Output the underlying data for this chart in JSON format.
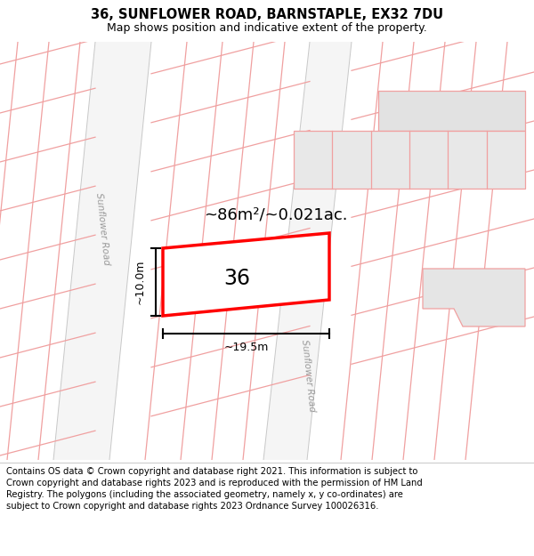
{
  "title": "36, SUNFLOWER ROAD, BARNSTAPLE, EX32 7DU",
  "subtitle": "Map shows position and indicative extent of the property.",
  "footer": "Contains OS data © Crown copyright and database right 2021. This information is subject to Crown copyright and database rights 2023 and is reproduced with the permission of HM Land Registry. The polygons (including the associated geometry, namely x, y co-ordinates) are subject to Crown copyright and database rights 2023 Ordnance Survey 100026316.",
  "area_text": "~86m²/~0.021ac.",
  "property_label": "36",
  "dim_width": "~19.5m",
  "dim_height": "~10.0m",
  "title_fontsize": 10.5,
  "subtitle_fontsize": 9,
  "footer_fontsize": 7.2,
  "map_bg": "#ebebeb",
  "road_fill": "#f5f5f5",
  "plot_line": "#f0a0a0",
  "prop_color": "#ff0000"
}
